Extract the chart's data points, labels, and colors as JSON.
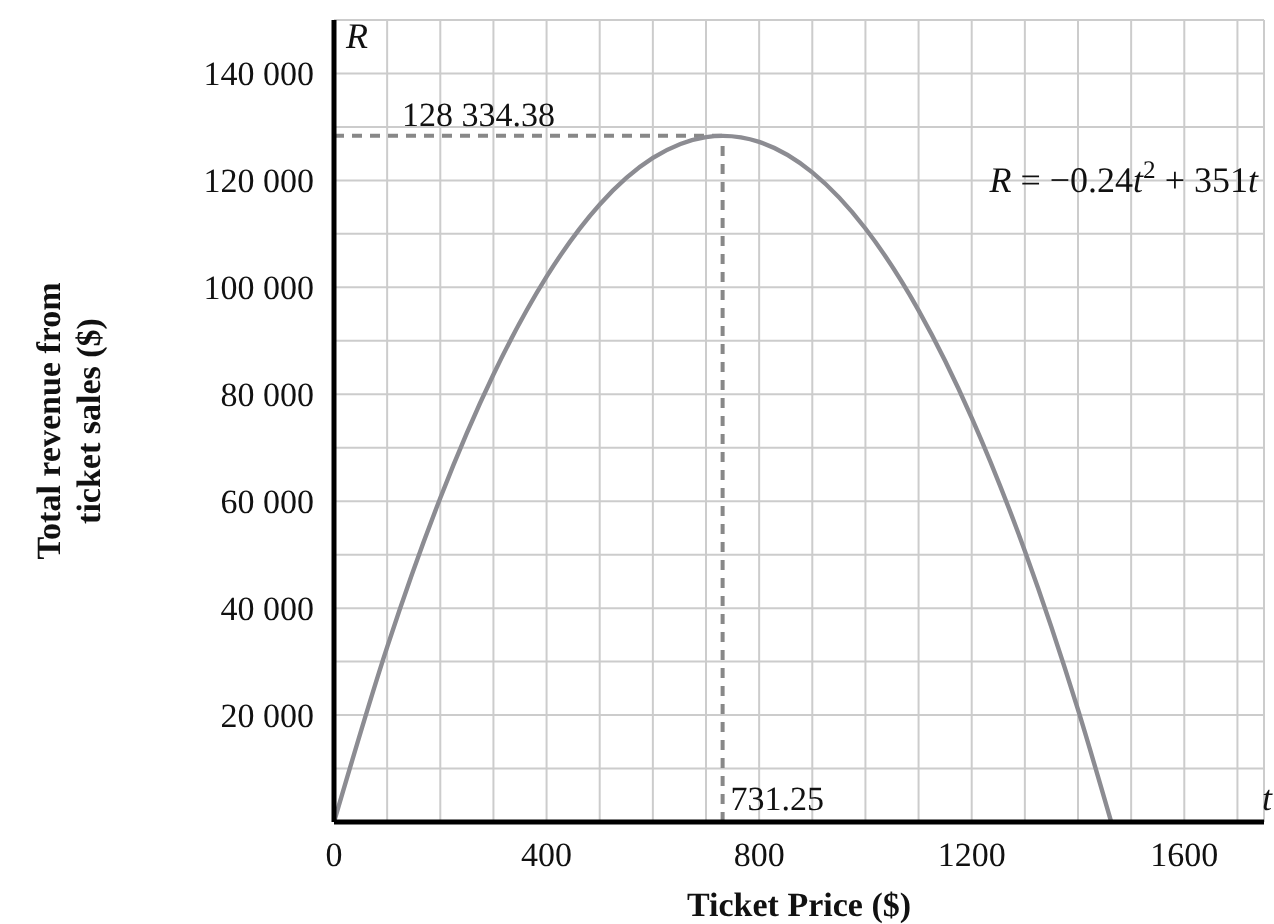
{
  "chart_data": {
    "type": "line",
    "xlabel": "Ticket Price ($)",
    "ylabel": "Total revenue from ticket sales ($)",
    "x": [
      0,
      100,
      200,
      300,
      400,
      500,
      600,
      700,
      731.25,
      800,
      900,
      1000,
      1100,
      1200,
      1300,
      1400,
      1462.5
    ],
    "series": [
      {
        "color": "#8c8c92",
        "values": [
          0,
          32700,
          60600,
          83700,
          102000,
          115500,
          124200,
          128100,
          128334.38,
          127200,
          121500,
          111000,
          95700,
          75600,
          50700,
          21000,
          0
        ]
      }
    ],
    "xlim": [
      0,
      1750
    ],
    "xticks": [
      0,
      {
        "value": 100,
        "label": null
      },
      {
        "value": 200,
        "label": null
      },
      {
        "value": 300,
        "label": null
      },
      400,
      {
        "value": 500,
        "label": null
      },
      {
        "value": 600,
        "label": null
      },
      {
        "value": 700,
        "label": null
      },
      800,
      {
        "value": 900,
        "label": null
      },
      {
        "value": 1000,
        "label": null
      },
      {
        "value": 1100,
        "label": null
      },
      1200,
      {
        "value": 1300,
        "label": null
      },
      {
        "value": 1400,
        "label": null
      },
      {
        "value": 1500,
        "label": null
      },
      1600,
      {
        "value": 1700,
        "label": null
      }
    ],
    "ylim": [
      0,
      150000
    ],
    "yticks": [
      {
        "value": 0,
        "label": null
      },
      {
        "value": 10000,
        "label": null
      },
      {
        "value": 20000,
        "label": "20 000"
      },
      {
        "value": 30000,
        "label": null
      },
      {
        "value": 40000,
        "label": "40 000"
      },
      {
        "value": 50000,
        "label": null
      },
      {
        "value": 60000,
        "label": "60 000"
      },
      {
        "value": 70000,
        "label": null
      },
      {
        "value": 80000,
        "label": "80 000"
      },
      {
        "value": 90000,
        "label": null
      },
      {
        "value": 100000,
        "label": "100 000"
      },
      {
        "value": 110000,
        "label": null
      },
      {
        "value": 120000,
        "label": "120 000"
      },
      {
        "value": 130000,
        "label": null
      },
      {
        "value": 140000,
        "label": "140 000"
      },
      {
        "value": 150000,
        "label": null
      }
    ],
    "ref_lines": [
      {
        "axis": "x",
        "value": 731.25,
        "label": "731.25",
        "color": "#888888",
        "line_style": "dashed"
      },
      {
        "axis": "y",
        "value": 128334.38,
        "label": "128 334.38",
        "color": "#888888",
        "line_style": "dashed"
      }
    ],
    "annotations": [
      "R = −0.24t$^{2}$ + 351t",
      "R",
      "t"
    ],
    "grid": true,
    "marker": "none",
    "line_style": "solid"
  }
}
